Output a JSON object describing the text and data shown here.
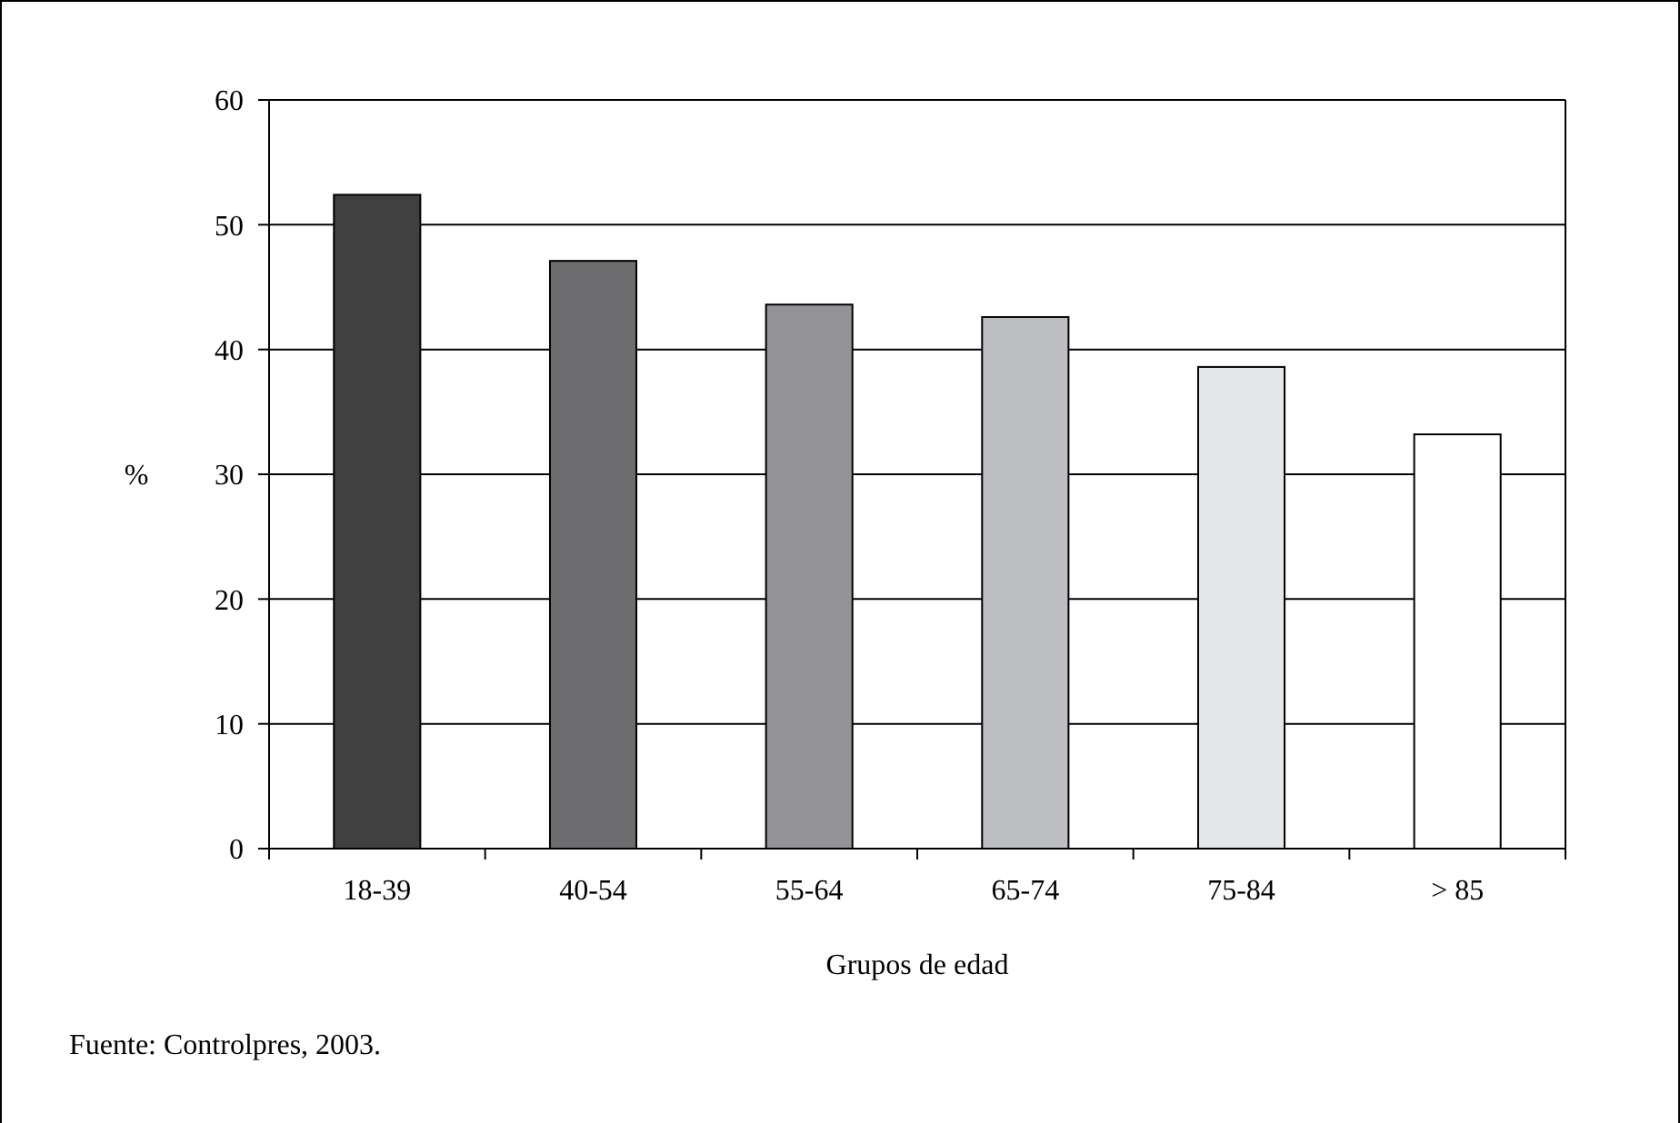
{
  "chart_data": {
    "type": "bar",
    "xlabel": "Grupos de edad",
    "ylabel": "%",
    "categories": [
      "18-39",
      "40-54",
      "55-64",
      "65-74",
      "75-84",
      "> 85"
    ],
    "values": [
      52.4,
      47.1,
      43.6,
      42.6,
      38.6,
      33.2
    ],
    "colors": [
      "#404040",
      "#6d6d6f",
      "#939396",
      "#bdbec1",
      "#e6e7e8",
      "#ffffff"
    ],
    "ylim": [
      0,
      60
    ],
    "yticks": [
      0,
      10,
      20,
      30,
      40,
      50,
      60
    ],
    "grid": "y",
    "annotations": [
      "Fuente: Controlpres, 2003."
    ]
  }
}
